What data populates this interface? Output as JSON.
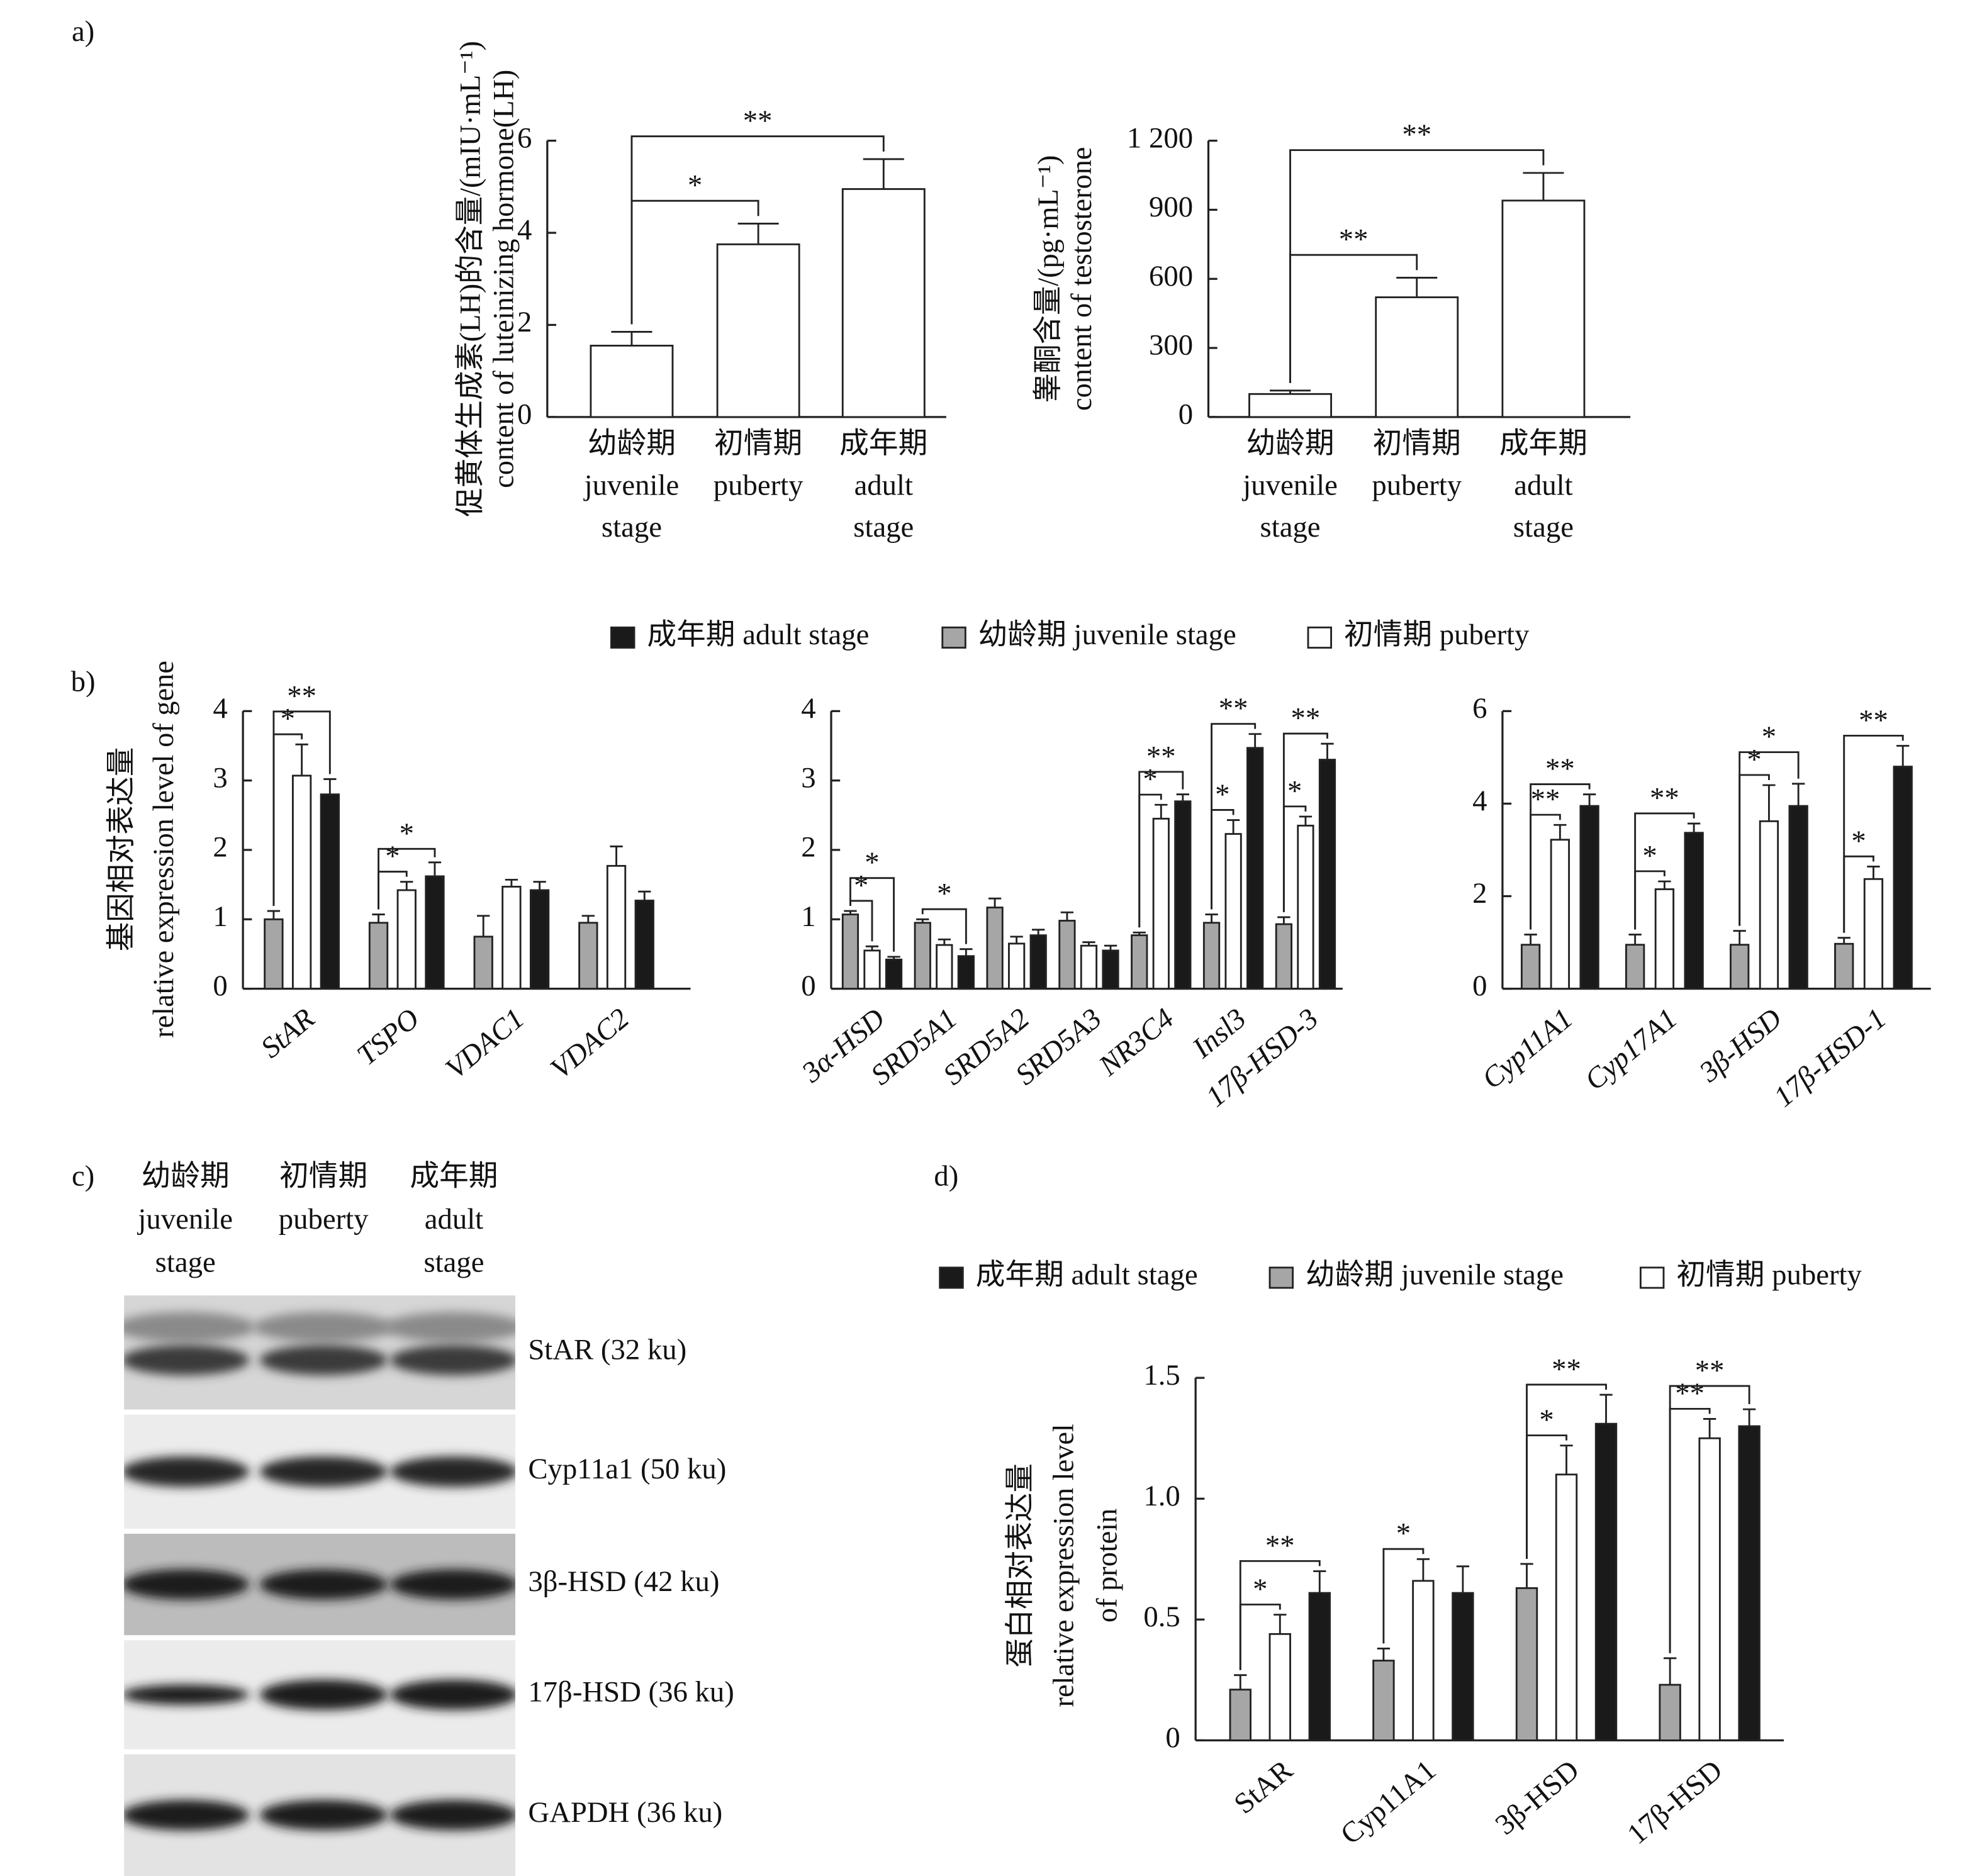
{
  "chart_data": [
    {
      "type": "bar",
      "panel": "a)",
      "ylabel": [
        "促黄体生成素(LH)的含量/(mIU·mL⁻¹)",
        "content of luteinizing hormone(LH)"
      ],
      "categories": [
        [
          "幼龄期",
          "juvenile",
          "stage"
        ],
        [
          "初情期",
          "puberty"
        ],
        [
          "成年期",
          "adult",
          "stage"
        ]
      ],
      "values": [
        1.55,
        3.75,
        4.95
      ],
      "errors": [
        0.3,
        0.45,
        0.65
      ],
      "color": "#ffffff",
      "ylim": [
        0,
        6
      ],
      "yticks": [
        0,
        2,
        4,
        6
      ],
      "annotations": [
        "*",
        "**"
      ]
    },
    {
      "type": "bar",
      "ylabel": [
        "睾酮含量/(pg·mL⁻¹)",
        "content of testosterone"
      ],
      "categories": [
        [
          "幼龄期",
          "juvenile",
          "stage"
        ],
        [
          "初情期",
          "puberty"
        ],
        [
          "成年期",
          "adult",
          "stage"
        ]
      ],
      "values": [
        100,
        520,
        940
      ],
      "errors": [
        15,
        85,
        120
      ],
      "color": "#ffffff",
      "ylim": [
        0,
        1200
      ],
      "yticks": [
        0,
        300,
        600,
        900,
        {
          "value": 1200,
          "label": "1 200"
        }
      ],
      "annotations": [
        "**",
        "**"
      ]
    },
    {
      "type": "grouped_bar",
      "panel": "b)",
      "italic_labels": true,
      "ylabel": [
        "基因相对表达量",
        "relative expression level of gene"
      ],
      "legend": [
        {
          "name": "成年期 adult stage",
          "color": "#1a1a1a"
        },
        {
          "name": "幼龄期 juvenile stage",
          "color": "#a6a6a6"
        },
        {
          "name": "初情期 puberty",
          "color": "#ffffff"
        }
      ],
      "panels": [
        {
          "categories": [
            "StAR",
            "TSPO",
            "VDAC1",
            "VDAC2"
          ],
          "ylim": [
            0,
            4
          ],
          "yticks": [
            0,
            1,
            2,
            3,
            4
          ],
          "series": [
            {
              "values": [
                2.8,
                1.62,
                1.42,
                1.27
              ],
              "errors": [
                0.22,
                0.2,
                0.12,
                0.13
              ]
            },
            {
              "values": [
                1.0,
                0.95,
                0.75,
                0.95
              ],
              "errors": [
                0.12,
                0.12,
                0.3,
                0.1
              ]
            },
            {
              "values": [
                3.07,
                1.42,
                1.47,
                1.77
              ],
              "errors": [
                0.45,
                0.12,
                0.1,
                0.28
              ]
            }
          ],
          "annotations": [
            "*",
            "**",
            "*",
            "*"
          ]
        },
        {
          "categories": [
            "3α-HSD",
            "SRD5A1",
            "SRD5A2",
            "SRD5A3",
            "NR3C4",
            "Insl3",
            "17β-HSD-3"
          ],
          "ylim": [
            0,
            4
          ],
          "yticks": [
            0,
            1,
            2,
            3,
            4
          ],
          "series": [
            {
              "values": [
                0.42,
                0.47,
                0.77,
                0.55,
                2.7,
                3.47,
                3.3
              ],
              "errors": [
                0.04,
                0.1,
                0.08,
                0.07,
                0.1,
                0.2,
                0.23
              ]
            },
            {
              "values": [
                1.07,
                0.95,
                1.17,
                0.98,
                0.77,
                0.95,
                0.93
              ],
              "errors": [
                0.05,
                0.05,
                0.13,
                0.12,
                0.04,
                0.12,
                0.1
              ]
            },
            {
              "values": [
                0.55,
                0.63,
                0.65,
                0.62,
                2.45,
                2.23,
                2.35
              ],
              "errors": [
                0.06,
                0.08,
                0.1,
                0.05,
                0.2,
                0.2,
                0.13
              ]
            }
          ],
          "annotations": [
            "*",
            "*",
            "*",
            "*",
            "**",
            "*",
            "**",
            "*",
            "**"
          ]
        },
        {
          "categories": [
            "Cyp11A1",
            "Cyp17A1",
            "3β-HSD",
            "17β-HSD-1"
          ],
          "ylim": [
            0,
            6
          ],
          "yticks": [
            0,
            2,
            4,
            6
          ],
          "series": [
            {
              "values": [
                3.95,
                3.37,
                3.95,
                4.8
              ],
              "errors": [
                0.25,
                0.2,
                0.48,
                0.45
              ]
            },
            {
              "values": [
                0.95,
                0.95,
                0.95,
                0.97
              ],
              "errors": [
                0.22,
                0.22,
                0.3,
                0.13
              ]
            },
            {
              "values": [
                3.22,
                2.15,
                3.62,
                2.37
              ],
              "errors": [
                0.32,
                0.17,
                0.78,
                0.27
              ]
            }
          ],
          "annotations": [
            "**",
            "**",
            "*",
            "**",
            "*",
            "*",
            "*",
            "**"
          ]
        }
      ]
    },
    {
      "type": "grouped_bar",
      "panel": "d)",
      "italic_labels": false,
      "ylabel": [
        "蛋白相对表达量",
        "relative expression level",
        "of protein"
      ],
      "legend": [
        {
          "name": "成年期 adult stage",
          "color": "#1a1a1a"
        },
        {
          "name": "幼龄期 juvenile stage",
          "color": "#a6a6a6"
        },
        {
          "name": "初情期 puberty",
          "color": "#ffffff"
        }
      ],
      "panels": [
        {
          "categories": [
            "StAR",
            "Cyp11A1",
            "3β-HSD",
            "17β-HSD"
          ],
          "ylim": [
            0,
            1.5
          ],
          "yticks": [
            0,
            0.5,
            {
              "value": 1,
              "label": "1.0"
            },
            1.5
          ],
          "series": [
            {
              "values": [
                0.61,
                0.61,
                1.31,
                1.3
              ],
              "errors": [
                0.09,
                0.11,
                0.12,
                0.07
              ]
            },
            {
              "values": [
                0.21,
                0.33,
                0.63,
                0.23
              ],
              "errors": [
                0.06,
                0.05,
                0.1,
                0.11
              ]
            },
            {
              "values": [
                0.44,
                0.66,
                1.1,
                1.25
              ],
              "errors": [
                0.08,
                0.09,
                0.12,
                0.08
              ]
            }
          ],
          "annotations": [
            "*",
            "**",
            "*",
            "*",
            "**",
            "**",
            "**"
          ]
        }
      ]
    }
  ],
  "blot": {
    "panel": "c)",
    "lanes": [
      [
        "幼龄期",
        "juvenile",
        "stage"
      ],
      [
        "初情期",
        "puberty"
      ],
      [
        "成年期",
        "adult",
        "stage"
      ]
    ],
    "bands": [
      "StAR (32 ku)",
      "Cyp11a1 (50 ku)",
      "3β-HSD (42 ku)",
      "17β-HSD (36 ku)",
      "GAPDH (36 ku)"
    ]
  }
}
